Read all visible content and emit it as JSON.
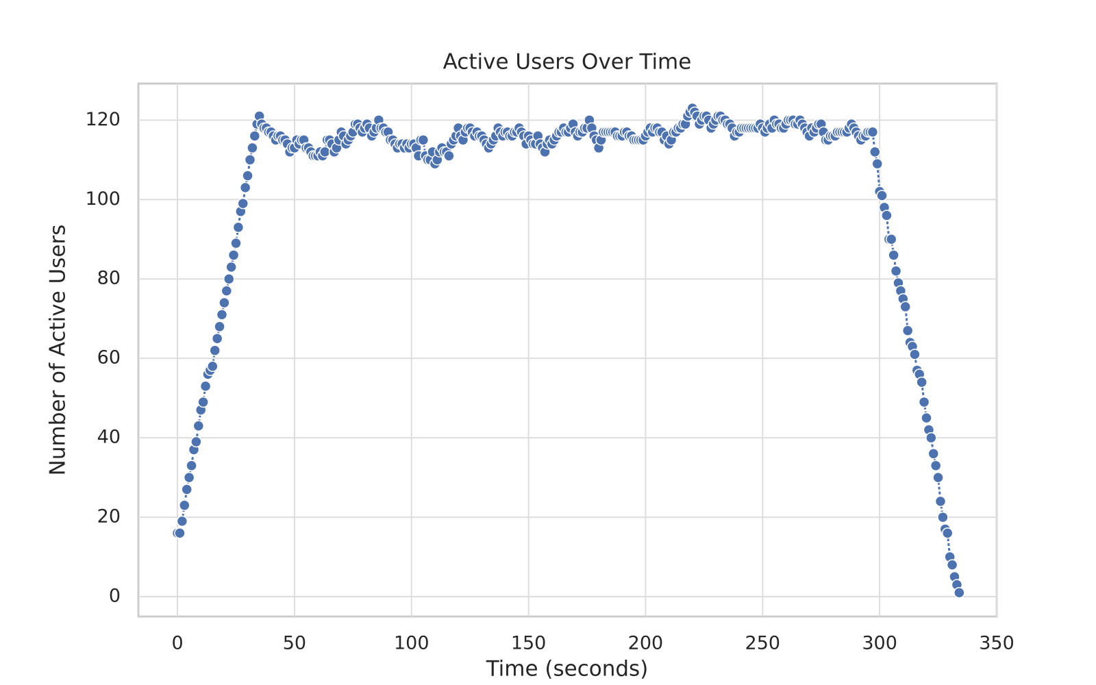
{
  "chart_data": {
    "type": "line",
    "title": "Active Users Over Time",
    "x_label": "Time (seconds)",
    "y_label": "Number of Active Users",
    "x": [
      0,
      1,
      2,
      3,
      4,
      5,
      6,
      7,
      8,
      9,
      10,
      11,
      12,
      13,
      14,
      15,
      16,
      17,
      18,
      19,
      20,
      21,
      22,
      23,
      24,
      25,
      26,
      27,
      28,
      29,
      30,
      31,
      32,
      33,
      34,
      35,
      36,
      37,
      38,
      39,
      40,
      41,
      42,
      43,
      44,
      45,
      46,
      47,
      48,
      49,
      50,
      51,
      52,
      53,
      54,
      55,
      56,
      57,
      58,
      59,
      60,
      61,
      62,
      63,
      64,
      65,
      66,
      67,
      68,
      69,
      70,
      71,
      72,
      73,
      74,
      75,
      76,
      77,
      78,
      79,
      80,
      81,
      82,
      83,
      84,
      85,
      86,
      87,
      88,
      89,
      90,
      91,
      92,
      93,
      94,
      95,
      96,
      97,
      98,
      99,
      100,
      101,
      102,
      103,
      104,
      105,
      106,
      107,
      108,
      109,
      110,
      111,
      112,
      113,
      114,
      115,
      116,
      117,
      118,
      119,
      120,
      121,
      122,
      123,
      124,
      125,
      126,
      127,
      128,
      129,
      130,
      131,
      132,
      133,
      134,
      135,
      136,
      137,
      138,
      139,
      140,
      141,
      142,
      143,
      144,
      145,
      146,
      147,
      148,
      149,
      150,
      151,
      152,
      153,
      154,
      155,
      156,
      157,
      158,
      159,
      160,
      161,
      162,
      163,
      164,
      165,
      166,
      167,
      168,
      169,
      170,
      171,
      172,
      173,
      174,
      175,
      176,
      177,
      178,
      179,
      180,
      181,
      182,
      183,
      184,
      185,
      186,
      187,
      188,
      189,
      190,
      191,
      192,
      193,
      194,
      195,
      196,
      197,
      198,
      199,
      200,
      201,
      202,
      203,
      204,
      205,
      206,
      207,
      208,
      209,
      210,
      211,
      212,
      213,
      214,
      215,
      216,
      217,
      218,
      219,
      220,
      221,
      222,
      223,
      224,
      225,
      226,
      227,
      228,
      229,
      230,
      231,
      232,
      233,
      234,
      235,
      236,
      237,
      238,
      239,
      240,
      241,
      242,
      243,
      244,
      245,
      246,
      247,
      248,
      249,
      250,
      251,
      252,
      253,
      254,
      255,
      256,
      257,
      258,
      259,
      260,
      261,
      262,
      263,
      264,
      265,
      266,
      267,
      268,
      269,
      270,
      271,
      272,
      273,
      274,
      275,
      276,
      277,
      278,
      279,
      280,
      281,
      282,
      283,
      284,
      285,
      286,
      287,
      288,
      289,
      290,
      291,
      292,
      293,
      294,
      295,
      296,
      297,
      298,
      299,
      300,
      301,
      302,
      303,
      304,
      305,
      306,
      307,
      308,
      309,
      310,
      311,
      312,
      313,
      314,
      315,
      316,
      317,
      318,
      319,
      320,
      321,
      322,
      323,
      324,
      325,
      326,
      327,
      328,
      329,
      330,
      331,
      332,
      333,
      334
    ],
    "series": [
      {
        "name": "Active Users",
        "color": "#4c72b0",
        "values": [
          16,
          16,
          19,
          23,
          27,
          30,
          33,
          37,
          39,
          43,
          47,
          49,
          53,
          56,
          57,
          58,
          62,
          65,
          68,
          71,
          74,
          77,
          80,
          83,
          86,
          89,
          93,
          97,
          99,
          103,
          106,
          110,
          113,
          116,
          119,
          121,
          119,
          118,
          118,
          117,
          117,
          116,
          115,
          116,
          116,
          115,
          115,
          114,
          112,
          113,
          113,
          115,
          114,
          115,
          115,
          113,
          113,
          112,
          111,
          111,
          111,
          112,
          111,
          112,
          115,
          115,
          114,
          112,
          113,
          115,
          117,
          116,
          114,
          115,
          116,
          117,
          119,
          119,
          118,
          117,
          118,
          119,
          118,
          116,
          117,
          118,
          120,
          118,
          118,
          117,
          117,
          115,
          115,
          114,
          113,
          114,
          114,
          113,
          114,
          113,
          114,
          114,
          113,
          111,
          115,
          115,
          111,
          110,
          110,
          112,
          109,
          110,
          112,
          113,
          112,
          112,
          111,
          114,
          115,
          116,
          118,
          116,
          115,
          117,
          118,
          118,
          117,
          116,
          117,
          116,
          116,
          115,
          114,
          113,
          114,
          115,
          116,
          118,
          117,
          116,
          117,
          117,
          116,
          116,
          117,
          117,
          118,
          117,
          116,
          114,
          116,
          115,
          114,
          114,
          116,
          114,
          113,
          112,
          114,
          115,
          114,
          115,
          116,
          117,
          117,
          118,
          117,
          117,
          118,
          119,
          117,
          116,
          117,
          117,
          118,
          118,
          120,
          118,
          116,
          115,
          113,
          115,
          117,
          117,
          117,
          117,
          117,
          117,
          116,
          116,
          116,
          117,
          117,
          116,
          116,
          115,
          115,
          115,
          115,
          115,
          116,
          117,
          118,
          117,
          118,
          118,
          117,
          117,
          115,
          116,
          114,
          115,
          117,
          117,
          118,
          118,
          119,
          119,
          121,
          122,
          123,
          122,
          121,
          119,
          120,
          121,
          121,
          120,
          118,
          119,
          120,
          121,
          121,
          120,
          120,
          119,
          119,
          118,
          116,
          117,
          117,
          118,
          118,
          118,
          118,
          118,
          118,
          118,
          118,
          119,
          118,
          117,
          118,
          119,
          118,
          120,
          119,
          119,
          118,
          118,
          119,
          120,
          120,
          120,
          119,
          119,
          120,
          119,
          118,
          117,
          116,
          118,
          117,
          118,
          119,
          119,
          117,
          115,
          115,
          116,
          116,
          116,
          117,
          117,
          117,
          117,
          117,
          118,
          119,
          118,
          117,
          116,
          115,
          116,
          116,
          117,
          117,
          117,
          112,
          109,
          102,
          101,
          98,
          96,
          90,
          90,
          86,
          82,
          79,
          77,
          75,
          73,
          67,
          64,
          63,
          61,
          57,
          56,
          54,
          49,
          45,
          42,
          40,
          36,
          33,
          30,
          24,
          20,
          17,
          16,
          10,
          8,
          5,
          3,
          1
        ]
      }
    ],
    "xlim": [
      -16.7,
      350
    ],
    "xticks": [
      0,
      50,
      100,
      150,
      200,
      250,
      300,
      350
    ],
    "ylim": [
      -5,
      129.2
    ],
    "yticks": [
      0,
      20,
      40,
      60,
      80,
      100,
      120
    ],
    "grid": true
  }
}
